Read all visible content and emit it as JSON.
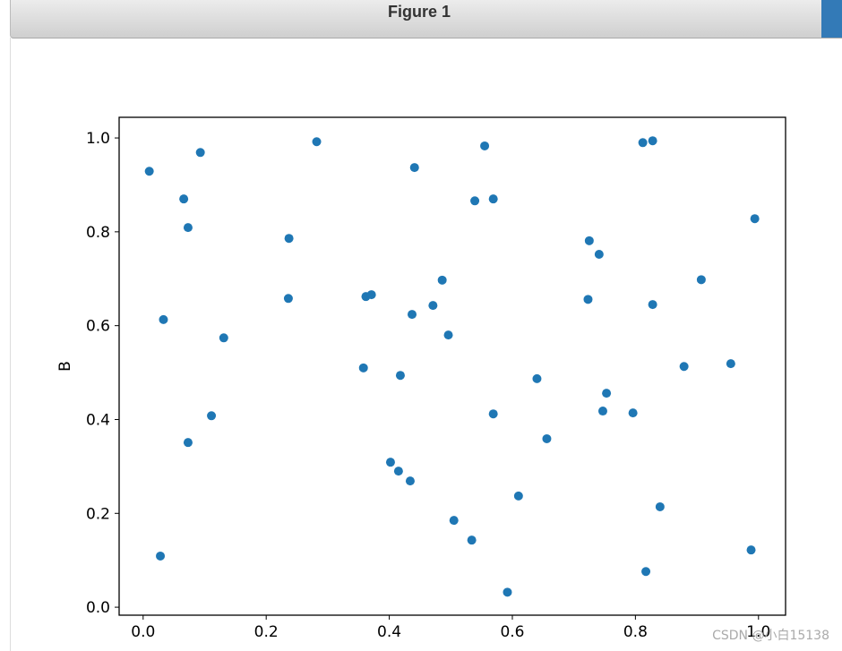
{
  "window": {
    "title": "Figure 1"
  },
  "watermark": "CSDN @小白15138",
  "chart_data": {
    "type": "scatter",
    "ylabel": "B",
    "color": "#1f77b4",
    "x": [
      0.01,
      0.093,
      0.282,
      0.066,
      0.073,
      0.237,
      0.033,
      0.131,
      0.236,
      0.111,
      0.073,
      0.028,
      0.441,
      0.555,
      0.539,
      0.569,
      0.362,
      0.371,
      0.486,
      0.471,
      0.437,
      0.496,
      0.358,
      0.418,
      0.64,
      0.569,
      0.656,
      0.402,
      0.415,
      0.434,
      0.61,
      0.505,
      0.534,
      0.592,
      0.812,
      0.828,
      0.994,
      0.725,
      0.741,
      0.907,
      0.723,
      0.828,
      0.879,
      0.955,
      0.753,
      0.747,
      0.796,
      0.84,
      0.817,
      0.988
    ],
    "values": [
      0.929,
      0.969,
      0.992,
      0.87,
      0.809,
      0.786,
      0.613,
      0.574,
      0.658,
      0.408,
      0.351,
      0.109,
      0.937,
      0.983,
      0.866,
      0.87,
      0.662,
      0.666,
      0.697,
      0.643,
      0.624,
      0.58,
      0.51,
      0.494,
      0.487,
      0.412,
      0.359,
      0.309,
      0.29,
      0.269,
      0.237,
      0.185,
      0.143,
      0.032,
      0.99,
      0.994,
      0.828,
      0.781,
      0.752,
      0.698,
      0.656,
      0.645,
      0.513,
      0.519,
      0.456,
      0.418,
      0.414,
      0.214,
      0.076,
      0.122
    ],
    "xlim": [
      -0.039,
      1.044
    ],
    "ylim": [
      -0.017,
      1.044
    ],
    "xticks": [
      {
        "value": 0,
        "label": "0.0"
      },
      0.2,
      0.4,
      0.6,
      0.8,
      {
        "value": 1,
        "label": "1.0"
      }
    ],
    "yticks": [
      {
        "value": 0,
        "label": "0.0"
      },
      0.2,
      0.4,
      0.6,
      0.8,
      {
        "value": 1,
        "label": "1.0"
      }
    ]
  }
}
